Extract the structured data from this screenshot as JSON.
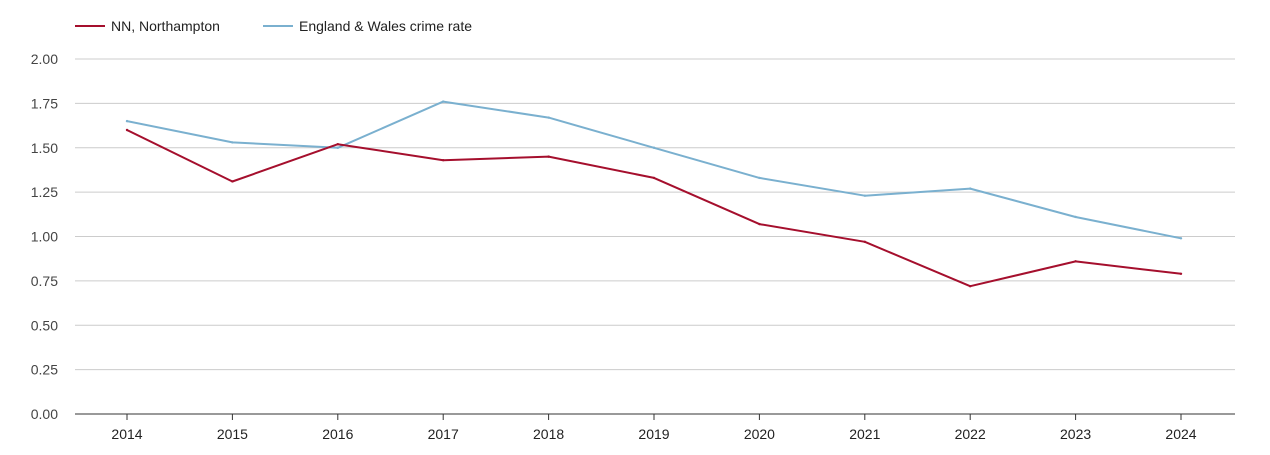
{
  "chart_data": {
    "type": "line",
    "title": "",
    "xlabel": "",
    "ylabel": "",
    "x": [
      "2014",
      "2015",
      "2016",
      "2017",
      "2018",
      "2019",
      "2020",
      "2021",
      "2022",
      "2023",
      "2024"
    ],
    "ylim": [
      0,
      2
    ],
    "yticks": [
      "0.00",
      "0.25",
      "0.50",
      "0.75",
      "1.00",
      "1.25",
      "1.50",
      "1.75",
      "2.00"
    ],
    "grid": true,
    "legend_position": "top-left",
    "series": [
      {
        "name": "NN, Northampton",
        "color": "#a50f2d",
        "values": [
          1.6,
          1.31,
          1.52,
          1.43,
          1.45,
          1.33,
          1.07,
          0.97,
          0.72,
          0.86,
          0.79
        ]
      },
      {
        "name": "England & Wales crime rate",
        "color": "#7ab0cf",
        "values": [
          1.65,
          1.53,
          1.5,
          1.76,
          1.67,
          1.5,
          1.33,
          1.23,
          1.27,
          1.11,
          0.99
        ]
      }
    ]
  }
}
